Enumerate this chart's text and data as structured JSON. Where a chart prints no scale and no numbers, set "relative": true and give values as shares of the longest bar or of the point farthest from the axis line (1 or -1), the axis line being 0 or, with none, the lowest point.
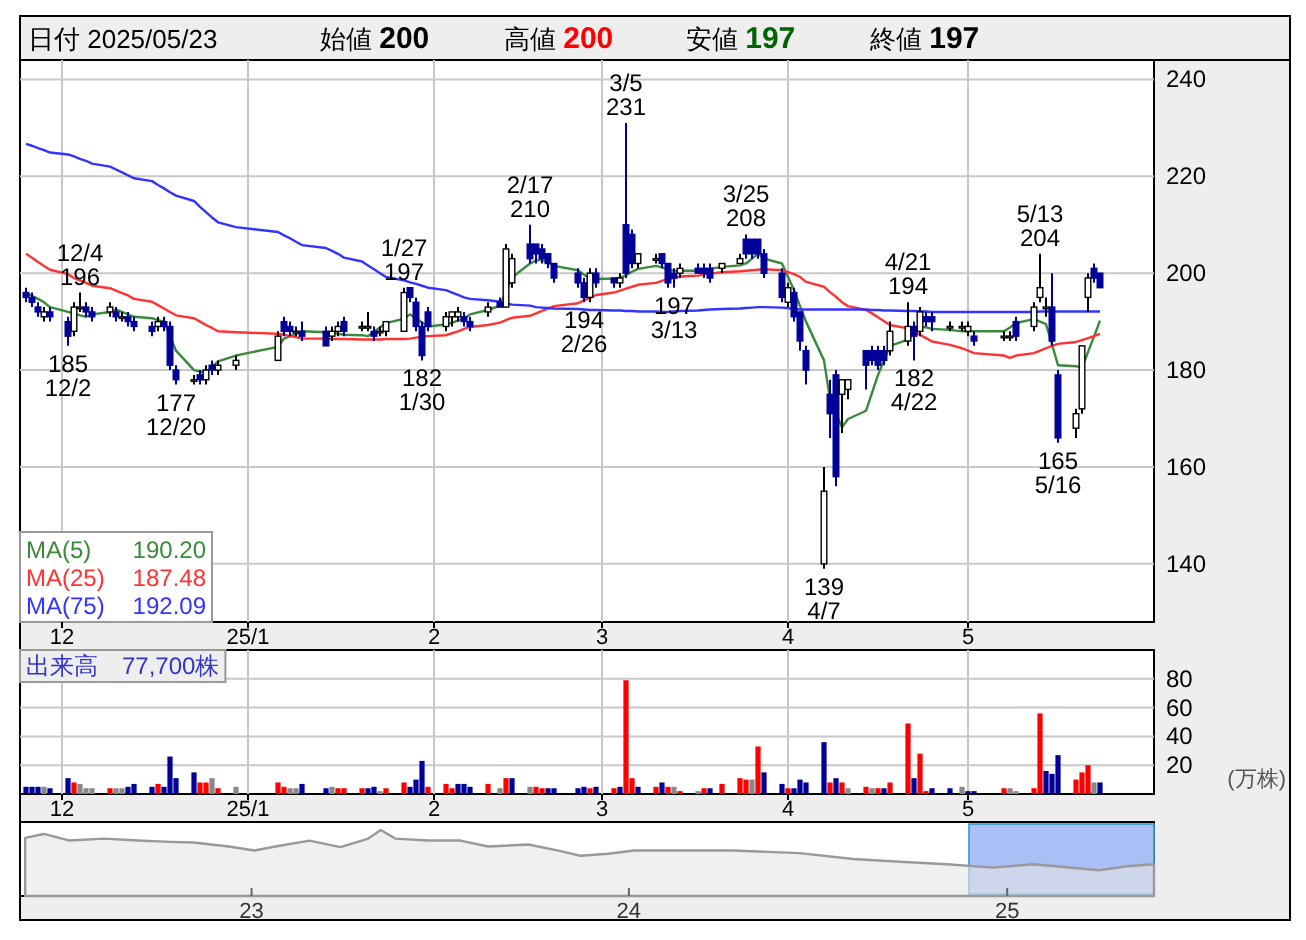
{
  "chart_data": [
    {
      "type": "candlestick",
      "grid": true,
      "legend": "bottom left",
      "ylim": [
        128,
        244
      ],
      "yticks": [
        140,
        160,
        180,
        200,
        220,
        240
      ],
      "xlim": [
        "2024-11-24",
        "2025-06-01"
      ],
      "xticks": [
        {
          "value": "2024-12-01",
          "label": "12"
        },
        {
          "value": "2025-01-01",
          "label": "25/1"
        },
        {
          "value": "2025-02-01",
          "label": "2"
        },
        {
          "value": "2025-03-01",
          "label": "3"
        },
        {
          "value": "2025-04-01",
          "label": "4"
        },
        {
          "value": "2025-05-01",
          "label": "5"
        }
      ],
      "x": [
        "2024-11-25",
        "2024-11-26",
        "2024-11-27",
        "2024-11-28",
        "2024-11-29",
        "2024-12-02",
        "2024-12-03",
        "2024-12-04",
        "2024-12-05",
        "2024-12-06",
        "2024-12-09",
        "2024-12-10",
        "2024-12-11",
        "2024-12-12",
        "2024-12-13",
        "2024-12-16",
        "2024-12-17",
        "2024-12-18",
        "2024-12-19",
        "2024-12-20",
        "2024-12-23",
        "2024-12-24",
        "2024-12-25",
        "2024-12-26",
        "2024-12-27",
        "2024-12-30",
        "2025-01-06",
        "2025-01-07",
        "2025-01-08",
        "2025-01-09",
        "2025-01-10",
        "2025-01-14",
        "2025-01-15",
        "2025-01-16",
        "2025-01-17",
        "2025-01-20",
        "2025-01-21",
        "2025-01-22",
        "2025-01-23",
        "2025-01-24",
        "2025-01-27",
        "2025-01-28",
        "2025-01-29",
        "2025-01-30",
        "2025-01-31",
        "2025-02-03",
        "2025-02-04",
        "2025-02-05",
        "2025-02-06",
        "2025-02-07",
        "2025-02-10",
        "2025-02-12",
        "2025-02-13",
        "2025-02-14",
        "2025-02-17",
        "2025-02-18",
        "2025-02-19",
        "2025-02-20",
        "2025-02-21",
        "2025-02-25",
        "2025-02-26",
        "2025-02-27",
        "2025-02-28",
        "2025-03-03",
        "2025-03-04",
        "2025-03-05",
        "2025-03-06",
        "2025-03-07",
        "2025-03-10",
        "2025-03-11",
        "2025-03-12",
        "2025-03-13",
        "2025-03-14",
        "2025-03-17",
        "2025-03-18",
        "2025-03-19",
        "2025-03-21",
        "2025-03-24",
        "2025-03-25",
        "2025-03-26",
        "2025-03-27",
        "2025-03-28",
        "2025-03-31",
        "2025-04-01",
        "2025-04-02",
        "2025-04-03",
        "2025-04-04",
        "2025-04-07",
        "2025-04-08",
        "2025-04-09",
        "2025-04-10",
        "2025-04-11",
        "2025-04-14",
        "2025-04-15",
        "2025-04-16",
        "2025-04-17",
        "2025-04-18",
        "2025-04-21",
        "2025-04-22",
        "2025-04-23",
        "2025-04-24",
        "2025-04-25",
        "2025-04-28",
        "2025-04-30",
        "2025-05-01",
        "2025-05-02",
        "2025-05-07",
        "2025-05-08",
        "2025-05-09",
        "2025-05-12",
        "2025-05-13",
        "2025-05-14",
        "2025-05-15",
        "2025-05-16",
        "2025-05-19",
        "2025-05-20",
        "2025-05-21",
        "2025-05-22",
        "2025-05-23"
      ],
      "ohlc": [
        [
          196,
          197,
          194,
          195
        ],
        [
          195,
          196,
          193,
          194
        ],
        [
          193,
          194,
          191,
          192
        ],
        [
          191,
          193,
          190,
          192
        ],
        [
          192,
          193,
          190,
          191
        ],
        [
          190,
          191,
          185,
          187
        ],
        [
          188,
          194,
          187,
          193
        ],
        [
          193,
          196,
          192,
          193
        ],
        [
          193,
          194,
          191,
          192
        ],
        [
          192,
          193,
          190,
          191
        ],
        [
          192,
          194,
          191,
          193
        ],
        [
          192,
          193,
          190,
          191
        ],
        [
          191,
          192,
          190,
          191
        ],
        [
          191,
          192,
          189,
          190
        ],
        [
          190,
          191,
          188,
          189
        ],
        [
          189,
          190,
          187,
          188
        ],
        [
          189,
          191,
          188,
          190
        ],
        [
          190,
          191,
          188,
          189
        ],
        [
          189,
          190,
          180,
          181
        ],
        [
          180,
          181,
          177,
          178
        ],
        [
          178,
          179,
          177,
          178
        ],
        [
          179,
          180,
          177,
          178
        ],
        [
          178,
          181,
          177,
          180
        ],
        [
          181,
          182,
          179,
          180
        ],
        [
          180,
          182,
          179,
          181
        ],
        [
          181,
          183,
          180,
          182
        ],
        [
          182,
          188,
          182,
          187
        ],
        [
          190,
          191,
          187,
          188
        ],
        [
          189,
          190,
          187,
          188
        ],
        [
          188,
          189,
          187,
          188
        ],
        [
          188,
          190,
          186,
          187
        ],
        [
          188,
          189,
          185,
          185
        ],
        [
          187,
          189,
          186,
          188
        ],
        [
          188,
          190,
          187,
          189
        ],
        [
          190,
          191,
          187,
          188
        ],
        [
          189,
          190,
          188,
          189
        ],
        [
          189,
          192,
          188,
          189
        ],
        [
          188,
          189,
          186,
          187
        ],
        [
          188,
          189,
          187,
          188
        ],
        [
          188,
          190,
          187,
          190
        ],
        [
          188,
          197,
          188,
          196
        ],
        [
          197,
          197,
          194,
          195
        ],
        [
          194,
          195,
          188,
          189
        ],
        [
          189,
          190,
          182,
          183
        ],
        [
          192,
          193,
          188,
          189
        ],
        [
          189,
          192,
          188,
          191
        ],
        [
          191,
          192,
          189,
          192
        ],
        [
          191,
          193,
          190,
          192
        ],
        [
          191,
          192,
          189,
          190
        ],
        [
          190,
          191,
          188,
          189
        ],
        [
          192,
          194,
          191,
          193
        ],
        [
          194,
          195,
          193,
          193
        ],
        [
          193,
          206,
          193,
          205
        ],
        [
          198,
          204,
          197,
          203
        ],
        [
          206,
          210,
          202,
          203
        ],
        [
          206,
          206,
          202,
          204
        ],
        [
          205,
          206,
          202,
          203
        ],
        [
          204,
          204,
          201,
          202
        ],
        [
          202,
          202,
          198,
          199
        ],
        [
          200,
          201,
          197,
          198
        ],
        [
          198,
          199,
          194,
          195
        ],
        [
          195,
          201,
          194,
          200
        ],
        [
          200,
          201,
          197,
          198
        ],
        [
          199,
          199,
          197,
          198
        ],
        [
          198,
          200,
          197,
          199
        ],
        [
          210,
          231,
          199,
          200
        ],
        [
          208,
          209,
          201,
          202
        ],
        [
          202,
          204,
          201,
          204
        ],
        [
          203,
          204,
          202,
          203
        ],
        [
          204,
          204,
          201,
          202
        ],
        [
          202,
          202,
          197,
          198
        ],
        [
          200,
          201,
          197,
          199
        ],
        [
          200,
          202,
          199,
          201
        ],
        [
          201,
          202,
          200,
          200
        ],
        [
          201,
          202,
          199,
          200
        ],
        [
          201,
          202,
          198,
          199
        ],
        [
          201,
          202,
          200,
          202
        ],
        [
          202,
          204,
          202,
          203
        ],
        [
          207,
          208,
          203,
          204
        ],
        [
          207,
          207,
          203,
          204
        ],
        [
          207,
          207,
          203,
          204
        ],
        [
          204,
          205,
          199,
          200
        ],
        [
          200,
          201,
          194,
          195
        ],
        [
          194,
          198,
          193,
          197
        ],
        [
          196,
          197,
          190,
          191
        ],
        [
          192,
          192,
          184,
          186
        ],
        [
          184,
          185,
          177,
          180
        ],
        [
          140,
          160,
          139,
          155
        ],
        [
          175,
          178,
          166,
          171
        ],
        [
          179,
          180,
          156,
          158
        ],
        [
          175,
          178,
          167,
          178
        ],
        [
          176,
          178,
          174,
          178
        ],
        [
          184,
          184,
          176,
          181
        ],
        [
          184,
          185,
          181,
          182
        ],
        [
          184,
          185,
          180,
          181
        ],
        [
          184,
          185,
          181,
          182
        ],
        [
          184,
          190,
          183,
          188
        ],
        [
          186,
          194,
          185,
          189
        ],
        [
          189,
          190,
          182,
          187
        ],
        [
          188,
          193,
          187,
          192
        ],
        [
          191,
          192,
          189,
          190
        ],
        [
          191,
          192,
          188,
          190
        ],
        [
          189,
          190,
          188,
          189
        ],
        [
          189,
          190,
          188,
          189
        ],
        [
          188,
          190,
          187,
          189
        ],
        [
          187,
          188,
          185,
          186
        ],
        [
          187,
          188,
          186,
          187
        ],
        [
          187,
          188,
          186,
          187
        ],
        [
          190,
          191,
          186,
          187
        ],
        [
          189,
          194,
          188,
          193
        ],
        [
          195,
          204,
          194,
          197
        ],
        [
          193,
          195,
          191,
          193
        ],
        [
          193,
          200,
          185,
          186
        ],
        [
          179,
          180,
          165,
          166
        ],
        [
          168,
          172,
          166,
          171
        ],
        [
          172,
          185,
          171,
          185
        ],
        [
          195,
          200,
          192,
          199
        ],
        [
          201,
          202,
          198,
          199
        ],
        [
          200,
          200,
          197,
          197
        ]
      ],
      "series": [
        {
          "type": "line",
          "name": "MA(5)",
          "color": "#3a8a3a",
          "values": [
            196,
            195.3,
            194.7,
            194,
            193,
            192,
            191.7,
            191.3,
            191,
            191.5,
            192,
            192.5,
            192,
            191.5,
            191,
            190.7,
            190.3,
            190,
            187,
            184,
            180,
            179.7,
            179.5,
            180.7,
            181.8,
            183,
            184.8,
            186.5,
            187,
            187.5,
            188,
            187.8,
            187.7,
            187.5,
            187.3,
            187.2,
            187,
            187.9,
            188.8,
            189.7,
            190.6,
            191.5,
            190.7,
            189.8,
            189,
            189.4,
            189.8,
            190.2,
            190.6,
            191.5,
            192.4,
            193.3,
            196.2,
            199.1,
            202,
            202.6,
            202.8,
            202.2,
            201.5,
            200.6,
            199.7,
            198.8,
            198.8,
            198.9,
            199,
            199.6,
            200.3,
            200.9,
            201.5,
            201.2,
            200.8,
            200.5,
            200.5,
            200.5,
            200.5,
            200.9,
            201.3,
            201.6,
            202,
            203,
            204,
            203,
            202,
            199.2,
            196.5,
            193.2,
            190,
            182,
            174,
            171,
            168.2,
            169.9,
            171.6,
            175.3,
            179,
            182,
            185,
            186.3,
            187.7,
            189,
            188.8,
            188.5,
            188.3,
            188,
            188,
            188,
            188,
            188.8,
            189.7,
            190.5,
            190,
            189.5,
            185.3,
            181,
            180.8,
            180.5,
            183.7,
            186.9,
            190.2
          ]
        },
        {
          "type": "line",
          "name": "MA(25)",
          "color": "#ff3333",
          "values": [
            204,
            203.2,
            202.3,
            201.5,
            200.7,
            199.8,
            199.0,
            198.5,
            198.0,
            197.4,
            196.9,
            196.4,
            195.9,
            195.4,
            194.7,
            194.1,
            193.4,
            192.7,
            192.0,
            191.3,
            190.7,
            190.0,
            189.3,
            188.7,
            188.0,
            187.8,
            187.5,
            187.3,
            187.0,
            186.8,
            186.5,
            186.5,
            186.4,
            186.4,
            186.4,
            186.3,
            186.3,
            186.3,
            186.3,
            186.4,
            186.4,
            186.5,
            186.7,
            186.9,
            187.0,
            187.2,
            187.6,
            188.0,
            188.5,
            188.9,
            189.3,
            189.8,
            190.3,
            190.8,
            191.2,
            191.7,
            192.2,
            192.7,
            193.2,
            193.8,
            194.4,
            194.9,
            195.5,
            196.0,
            196.4,
            196.8,
            197.2,
            197.6,
            198.0,
            198.4,
            198.8,
            199.0,
            199.3,
            199.5,
            199.7,
            199.9,
            200.2,
            200.4,
            200.5,
            200.6,
            200.7,
            200.8,
            200.6,
            200.2,
            199.8,
            199.2,
            198.2,
            197.2,
            196.1,
            195.1,
            194.0,
            193.2,
            192.4,
            191.7,
            190.9,
            190.1,
            189.3,
            188.6,
            187.9,
            187.3,
            186.6,
            185.9,
            185.2,
            184.5,
            184.0,
            183.5,
            183.0,
            182.5,
            183.0,
            183.5,
            184.0,
            184.5,
            185.0,
            185.4,
            185.8,
            186.2,
            186.6,
            187.0,
            187.5
          ]
        },
        {
          "type": "line",
          "name": "MA(75)",
          "color": "#3333ff",
          "values": [
            226.7,
            226.3,
            225.8,
            225.4,
            224.9,
            224.5,
            224.1,
            223.6,
            223.2,
            222.6,
            222.0,
            221.4,
            220.8,
            220.2,
            219.6,
            219.0,
            218.2,
            217.5,
            216.7,
            216.0,
            214.9,
            213.7,
            212.6,
            211.5,
            210.5,
            209.5,
            208.5,
            207.8,
            207.2,
            206.5,
            205.8,
            205.2,
            204.6,
            204.0,
            203.2,
            202.4,
            201.6,
            200.8,
            200.0,
            199.2,
            198.5,
            198.1,
            197.8,
            197.4,
            197.0,
            196.5,
            196.0,
            195.5,
            195.0,
            194.7,
            194.4,
            194.1,
            193.8,
            193.5,
            193.3,
            193.0,
            192.9,
            192.8,
            192.7,
            192.6,
            192.5,
            192.4,
            192.4,
            192.3,
            192.3,
            192.2,
            192.2,
            192.1,
            192.1,
            192.0,
            192.0,
            192.1,
            192.2,
            192.3,
            192.4,
            192.5,
            192.6,
            192.7,
            192.8,
            192.9,
            193.0,
            193.0,
            192.9,
            192.8,
            192.6,
            192.5,
            192.5,
            192.5,
            192.5,
            192.5,
            192.5,
            192.5,
            192.5,
            192.4,
            192.4,
            192.3,
            192.3,
            192.2,
            192.2,
            192.1,
            192.1,
            192.0,
            192.0,
            192.0,
            192.0,
            192.0,
            192.0,
            192.0,
            192.0,
            192.0,
            192.1,
            192.1,
            192.1,
            192.1,
            192.1,
            192.1,
            192.1,
            192.1,
            192.1
          ]
        }
      ],
      "annotations": [
        "日付 2025/05/23",
        "始値 **200**",
        "高値 **200**",
        "安値 **197**",
        "終値 **197**",
        "190.20",
        "187.48",
        "192.09",
        {
          "text": "185",
          "x": "2024-12-02",
          "y": 185
        },
        {
          "text": "12/2",
          "x": "2024-12-02",
          "y": 185
        },
        {
          "text": "12/4",
          "x": "2024-12-04",
          "y": 196
        },
        {
          "text": "196",
          "x": "2024-12-04",
          "y": 196
        },
        {
          "text": "177",
          "x": "2024-12-20",
          "y": 177
        },
        {
          "text": "12/20",
          "x": "2024-12-20",
          "y": 177
        },
        {
          "text": "1/27",
          "x": "2025-01-27",
          "y": 197
        },
        {
          "text": "197",
          "x": "2025-01-27",
          "y": 197
        },
        {
          "text": "182",
          "x": "2025-01-30",
          "y": 182
        },
        {
          "text": "1/30",
          "x": "2025-01-30",
          "y": 182
        },
        {
          "text": "2/17",
          "x": "2025-02-17",
          "y": 210
        },
        {
          "text": "210",
          "x": "2025-02-17",
          "y": 210
        },
        {
          "text": "194",
          "x": "2025-02-26",
          "y": 194
        },
        {
          "text": "2/26",
          "x": "2025-02-26",
          "y": 194
        },
        {
          "text": "3/5",
          "x": "2025-03-05",
          "y": 231
        },
        {
          "text": "231",
          "x": "2025-03-05",
          "y": 231
        },
        {
          "text": "197",
          "x": "2025-03-13",
          "y": 197
        },
        {
          "text": "3/13",
          "x": "2025-03-13",
          "y": 197
        },
        {
          "text": "3/25",
          "x": "2025-03-25",
          "y": 208
        },
        {
          "text": "208",
          "x": "2025-03-25",
          "y": 208
        },
        {
          "text": "139",
          "x": "2025-04-07",
          "y": 139
        },
        {
          "text": "4/7",
          "x": "2025-04-07",
          "y": 139
        },
        {
          "text": "4/21",
          "x": "2025-04-21",
          "y": 194
        },
        {
          "text": "194",
          "x": "2025-04-21",
          "y": 194
        },
        {
          "text": "182",
          "x": "2025-04-22",
          "y": 182
        },
        {
          "text": "4/22",
          "x": "2025-04-22",
          "y": 182
        },
        {
          "text": "5/13",
          "x": "2025-05-13",
          "y": 204
        },
        {
          "text": "204",
          "x": "2025-05-13",
          "y": 204
        },
        {
          "text": "165",
          "x": "2025-05-16",
          "y": 165
        },
        {
          "text": "5/16",
          "x": "2025-05-16",
          "y": 165
        }
      ]
    },
    {
      "type": "bar",
      "grid": true,
      "ylim": [
        0,
        100
      ],
      "yticks": [
        20,
        40,
        60,
        80
      ],
      "ylabel": "(万株)",
      "xlim": [
        "2024-11-24",
        "2025-06-01"
      ],
      "xticks": [
        {
          "value": "2024-12-01",
          "label": "12"
        },
        {
          "value": "2025-01-01",
          "label": "25/1"
        },
        {
          "value": "2025-02-01",
          "label": "2"
        },
        {
          "value": "2025-03-01",
          "label": "3"
        },
        {
          "value": "2025-04-01",
          "label": "4"
        },
        {
          "value": "2025-05-01",
          "label": "5"
        }
      ],
      "x": [
        "2024-11-25",
        "2024-11-26",
        "2024-11-27",
        "2024-11-28",
        "2024-11-29",
        "2024-12-02",
        "2024-12-03",
        "2024-12-04",
        "2024-12-05",
        "2024-12-06",
        "2024-12-09",
        "2024-12-10",
        "2024-12-11",
        "2024-12-12",
        "2024-12-13",
        "2024-12-16",
        "2024-12-17",
        "2024-12-18",
        "2024-12-19",
        "2024-12-20",
        "2024-12-23",
        "2024-12-24",
        "2024-12-25",
        "2024-12-26",
        "2024-12-27",
        "2024-12-30",
        "2025-01-06",
        "2025-01-07",
        "2025-01-08",
        "2025-01-09",
        "2025-01-10",
        "2025-01-14",
        "2025-01-15",
        "2025-01-16",
        "2025-01-17",
        "2025-01-20",
        "2025-01-21",
        "2025-01-22",
        "2025-01-23",
        "2025-01-24",
        "2025-01-27",
        "2025-01-28",
        "2025-01-29",
        "2025-01-30",
        "2025-01-31",
        "2025-02-03",
        "2025-02-04",
        "2025-02-05",
        "2025-02-06",
        "2025-02-07",
        "2025-02-10",
        "2025-02-12",
        "2025-02-13",
        "2025-02-14",
        "2025-02-17",
        "2025-02-18",
        "2025-02-19",
        "2025-02-20",
        "2025-02-21",
        "2025-02-25",
        "2025-02-26",
        "2025-02-27",
        "2025-02-28",
        "2025-03-03",
        "2025-03-04",
        "2025-03-05",
        "2025-03-06",
        "2025-03-07",
        "2025-03-10",
        "2025-03-11",
        "2025-03-12",
        "2025-03-13",
        "2025-03-14",
        "2025-03-17",
        "2025-03-18",
        "2025-03-19",
        "2025-03-21",
        "2025-03-24",
        "2025-03-25",
        "2025-03-26",
        "2025-03-27",
        "2025-03-28",
        "2025-03-31",
        "2025-04-01",
        "2025-04-02",
        "2025-04-03",
        "2025-04-04",
        "2025-04-07",
        "2025-04-08",
        "2025-04-09",
        "2025-04-10",
        "2025-04-11",
        "2025-04-14",
        "2025-04-15",
        "2025-04-16",
        "2025-04-17",
        "2025-04-18",
        "2025-04-21",
        "2025-04-22",
        "2025-04-23",
        "2025-04-24",
        "2025-04-25",
        "2025-04-28",
        "2025-04-30",
        "2025-05-01",
        "2025-05-02",
        "2025-05-07",
        "2025-05-08",
        "2025-05-09",
        "2025-05-12",
        "2025-05-13",
        "2025-05-14",
        "2025-05-15",
        "2025-05-16",
        "2025-05-19",
        "2025-05-20",
        "2025-05-21",
        "2025-05-22",
        "2025-05-23"
      ],
      "values": [
        5,
        5,
        5,
        5,
        4,
        11,
        8,
        7,
        4,
        4,
        4,
        4,
        4,
        5,
        7,
        5,
        7,
        5,
        26,
        11,
        15,
        8,
        8,
        11,
        4,
        5,
        8,
        5,
        4,
        4,
        7,
        4,
        5,
        4,
        4,
        4,
        4,
        5,
        2,
        4,
        8,
        5,
        10,
        23,
        5,
        7,
        4,
        7,
        7,
        5,
        7,
        4,
        11,
        11,
        5,
        5,
        4,
        4,
        4,
        4,
        5,
        4,
        5,
        4,
        5,
        79,
        11,
        5,
        5,
        8,
        5,
        5,
        2,
        2,
        4,
        4,
        7,
        11,
        10,
        10,
        33,
        15,
        7,
        4,
        4,
        10,
        8,
        36,
        8,
        11,
        8,
        4,
        5,
        4,
        4,
        4,
        8,
        49,
        11,
        28,
        2,
        4,
        4,
        5,
        2,
        2,
        4,
        4,
        2,
        4,
        56,
        16,
        14,
        27,
        10,
        15,
        20,
        8,
        8
      ],
      "colors": [
        "#000099",
        "#000099",
        "#000099",
        "#888888",
        "#000099",
        "#000099",
        "#ff0000",
        "#888888",
        "#888888",
        "#888888",
        "#ff0000",
        "#888888",
        "#888888",
        "#000099",
        "#000099",
        "#000099",
        "#ff0000",
        "#000099",
        "#000099",
        "#000099",
        "#000099",
        "#ff0000",
        "#ff0000",
        "#888888",
        "#ff0000",
        "#888888",
        "#ff0000",
        "#ff0000",
        "#888888",
        "#888888",
        "#000099",
        "#000099",
        "#888888",
        "#ff0000",
        "#ff0000",
        "#ff0000",
        "#000099",
        "#000099",
        "#888888",
        "#ff0000",
        "#ff0000",
        "#000099",
        "#000099",
        "#000099",
        "#ff0000",
        "#ff0000",
        "#ff0000",
        "#000099",
        "#000099",
        "#000099",
        "#ff0000",
        "#888888",
        "#ff0000",
        "#000099",
        "#888888",
        "#ff0000",
        "#ff0000",
        "#000099",
        "#000099",
        "#000099",
        "#000099",
        "#ff0000",
        "#000099",
        "#ff0000",
        "#000099",
        "#ff0000",
        "#ff0000",
        "#000099",
        "#ff0000",
        "#000099",
        "#ff0000",
        "#888888",
        "#ff0000",
        "#888888",
        "#ff0000",
        "#000099",
        "#ff0000",
        "#ff0000",
        "#ff0000",
        "#888888",
        "#ff0000",
        "#000099",
        "#000099",
        "#ff0000",
        "#000099",
        "#000099",
        "#000099",
        "#000099",
        "#ff0000",
        "#000099",
        "#ff0000",
        "#888888",
        "#ff0000",
        "#888888",
        "#ff0000",
        "#000099",
        "#ff0000",
        "#ff0000",
        "#000099",
        "#ff0000",
        "#ff0000",
        "#000099",
        "#000099",
        "#888888",
        "#000099",
        "#000099",
        "#ff0000",
        "#888888",
        "#888888",
        "#ff0000",
        "#ff0000",
        "#000099",
        "#000099",
        "#000099",
        "#ff0000",
        "#ff0000",
        "#ff0000",
        "#888888",
        "#000099"
      ],
      "annotations": [
        "出来高　77,700株"
      ]
    },
    {
      "type": "area",
      "relative": true,
      "color": "#999999",
      "xlim": [
        "2022-05-22",
        "2025-05-23"
      ],
      "xticks": [
        {
          "value": "2023-01-01",
          "label": "23"
        },
        {
          "value": "2024-01-01",
          "label": "24"
        },
        {
          "value": "2025-01-01",
          "label": "25"
        }
      ],
      "x": [
        "2022-05-27",
        "2022-06-14",
        "2022-07-09",
        "2022-08-11",
        "2022-09-13",
        "2022-10-14",
        "2022-11-06",
        "2022-12-10",
        "2023-01-04",
        "2023-01-24",
        "2023-02-26",
        "2023-03-28",
        "2023-04-24",
        "2023-05-06",
        "2023-05-20",
        "2023-06-21",
        "2023-07-22",
        "2023-08-18",
        "2023-09-26",
        "2023-10-27",
        "2023-11-15",
        "2023-12-12",
        "2024-01-06",
        "2024-02-07",
        "2024-04-11",
        "2024-06-14",
        "2024-08-05",
        "2024-09-19",
        "2024-11-04",
        "2024-12-18",
        "2025-01-26",
        "2025-03-31",
        "2025-04-27",
        "2025-05-23"
      ],
      "values": [
        0.88,
        0.94,
        0.84,
        0.87,
        0.84,
        0.82,
        0.81,
        0.75,
        0.69,
        0.75,
        0.84,
        0.74,
        0.87,
        1,
        0.87,
        0.84,
        0.84,
        0.75,
        0.78,
        0.68,
        0.61,
        0.64,
        0.69,
        0.69,
        0.69,
        0.65,
        0.56,
        0.52,
        0.48,
        0.43,
        0.48,
        0.39,
        0.45,
        0.48
      ],
      "bands": [
        {
          "axis": "x",
          "from": "2024-11-25",
          "to": "2025-05-23",
          "color": "#aabff5"
        }
      ]
    }
  ]
}
